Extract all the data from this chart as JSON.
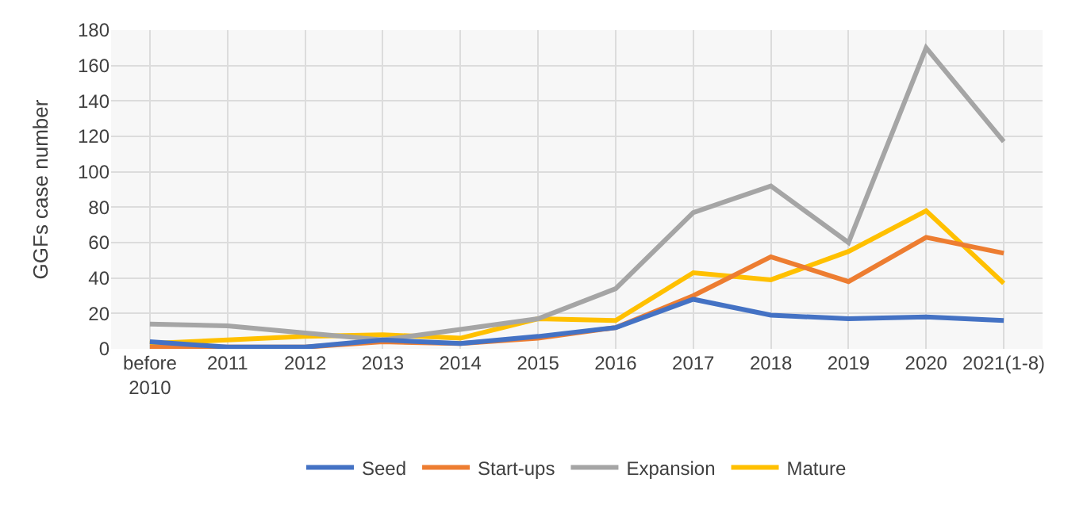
{
  "chart_data": {
    "type": "line",
    "ylabel": "GGFs case number",
    "categories": [
      "before\n2010",
      "2011",
      "2012",
      "2013",
      "2014",
      "2015",
      "2016",
      "2017",
      "2018",
      "2019",
      "2020",
      "2021(1-8)"
    ],
    "series": [
      {
        "name": "Seed",
        "color": "#4472c4",
        "values": [
          4,
          1,
          1,
          5,
          3,
          7,
          12,
          28,
          19,
          17,
          18,
          16
        ]
      },
      {
        "name": "Start-ups",
        "color": "#ed7d31",
        "values": [
          1,
          1,
          1,
          4,
          3,
          6,
          12,
          30,
          52,
          38,
          63,
          54
        ]
      },
      {
        "name": "Expansion",
        "color": "#a5a5a5",
        "values": [
          14,
          13,
          9,
          5,
          11,
          17,
          34,
          77,
          92,
          60,
          170,
          117
        ]
      },
      {
        "name": "Mature",
        "color": "#ffc000",
        "values": [
          3,
          5,
          7,
          8,
          6,
          17,
          16,
          43,
          39,
          55,
          78,
          37
        ]
      }
    ],
    "ylim": [
      0,
      180
    ],
    "yticks": [
      0,
      20,
      40,
      60,
      80,
      100,
      120,
      140,
      160,
      180
    ],
    "grid": true,
    "legend": "bottom",
    "marker": "none",
    "line_style": "solid"
  }
}
